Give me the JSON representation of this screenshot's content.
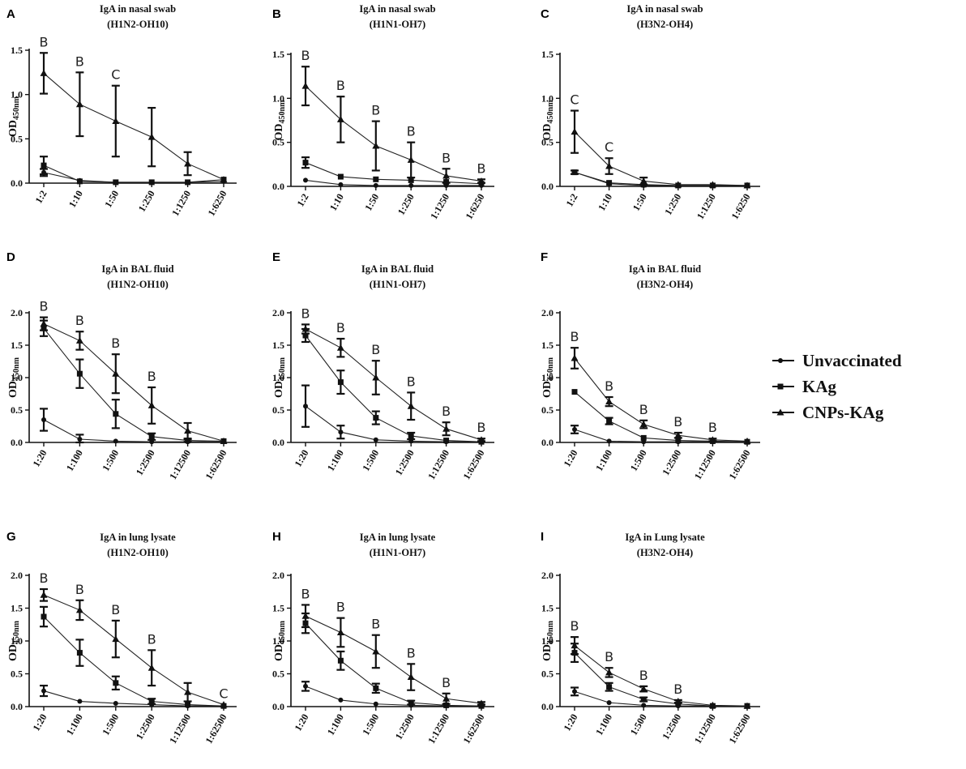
{
  "legend": {
    "entries": [
      {
        "name": "Unvaccinated",
        "marker": "circle"
      },
      {
        "name": "KAg",
        "marker": "square"
      },
      {
        "name": "CNPs-KAg",
        "marker": "triangle"
      }
    ],
    "placement": "right-middle"
  },
  "chart_data": [
    {
      "panel": "A",
      "type": "line",
      "title": "IgA in nasal swab",
      "subtitle": "(H1N2-OH10)",
      "ylabel": "OD450nm",
      "ylim": [
        0,
        1.5
      ],
      "yticks": [
        0,
        0.5,
        1.0,
        1.5
      ],
      "categories": [
        "1:2",
        "1:10",
        "1:50",
        "1:250",
        "1:1250",
        "1:6250"
      ],
      "series": [
        {
          "name": "Unvaccinated",
          "values": [
            0.12,
            0.03,
            0.01,
            0.01,
            0.01,
            0.02
          ],
          "errors": [
            0.04,
            0.0,
            0.0,
            0.0,
            0.0,
            0.0
          ]
        },
        {
          "name": "KAg",
          "values": [
            0.2,
            0.02,
            0.01,
            0.01,
            0.01,
            0.04
          ],
          "errors": [
            0.1,
            0.0,
            0.0,
            0.0,
            0.0,
            0.0
          ]
        },
        {
          "name": "CNPs-KAg",
          "values": [
            1.24,
            0.89,
            0.7,
            0.52,
            0.22,
            0.04
          ],
          "errors": [
            0.23,
            0.36,
            0.4,
            0.33,
            0.13,
            0.0
          ]
        }
      ],
      "annotations": [
        {
          "category": "1:2",
          "text": "B"
        },
        {
          "category": "1:10",
          "text": "B"
        },
        {
          "category": "1:50",
          "text": "C"
        }
      ]
    },
    {
      "panel": "B",
      "type": "line",
      "title": "IgA in nasal swab",
      "subtitle": "(H1N1-OH7)",
      "ylabel": "OD450nm",
      "ylim": [
        0,
        1.5
      ],
      "yticks": [
        0,
        0.5,
        1.0,
        1.5
      ],
      "categories": [
        "1:2",
        "1:10",
        "1:50",
        "1:250",
        "1:1250",
        "1:6250"
      ],
      "series": [
        {
          "name": "Unvaccinated",
          "values": [
            0.07,
            0.02,
            0.01,
            0.01,
            0.01,
            0.01
          ],
          "errors": [
            0,
            0,
            0,
            0,
            0,
            0
          ]
        },
        {
          "name": "KAg",
          "values": [
            0.27,
            0.11,
            0.08,
            0.07,
            0.05,
            0.03
          ],
          "errors": [
            0.06,
            0,
            0,
            0,
            0,
            0
          ]
        },
        {
          "name": "CNPs-KAg",
          "values": [
            1.14,
            0.76,
            0.46,
            0.3,
            0.12,
            0.06
          ],
          "errors": [
            0.22,
            0.26,
            0.28,
            0.2,
            0.08,
            0.02
          ]
        }
      ],
      "annotations": [
        {
          "category": "1:2",
          "text": "B"
        },
        {
          "category": "1:10",
          "text": "B"
        },
        {
          "category": "1:50",
          "text": "B"
        },
        {
          "category": "1:250",
          "text": "B"
        },
        {
          "category": "1:1250",
          "text": "B"
        },
        {
          "category": "1:6250",
          "text": "B"
        }
      ]
    },
    {
      "panel": "C",
      "type": "line",
      "title": "IgA in nasal swab",
      "subtitle": "(H3N2-OH4)",
      "ylabel": "OD450nm",
      "ylim": [
        0,
        1.5
      ],
      "yticks": [
        0,
        0.5,
        1.0,
        1.5
      ],
      "categories": [
        "1:2",
        "1:10",
        "1:50",
        "1:250",
        "1:1250",
        "1:6250"
      ],
      "series": [
        {
          "name": "Unvaccinated",
          "values": [
            0.16,
            0.03,
            0.01,
            0.01,
            0.01,
            0.01
          ],
          "errors": [
            0,
            0,
            0,
            0,
            0,
            0
          ]
        },
        {
          "name": "KAg",
          "values": [
            0.16,
            0.04,
            0.02,
            0.01,
            0.01,
            0.01
          ],
          "errors": [
            0.02,
            0,
            0,
            0,
            0,
            0
          ]
        },
        {
          "name": "CNPs-KAg",
          "values": [
            0.62,
            0.23,
            0.06,
            0.02,
            0.02,
            0.01
          ],
          "errors": [
            0.24,
            0.09,
            0.04,
            0,
            0,
            0
          ]
        }
      ],
      "annotations": [
        {
          "category": "1:2",
          "text": "C"
        },
        {
          "category": "1:10",
          "text": "C"
        }
      ]
    },
    {
      "panel": "D",
      "type": "line",
      "title": "IgA in BAL fluid",
      "subtitle": "(H1N2-OH10)",
      "ylabel": "OD450nm",
      "ylim": [
        0,
        2.0
      ],
      "yticks": [
        0,
        0.5,
        1.0,
        1.5,
        2.0
      ],
      "categories": [
        "1:20",
        "1:100",
        "1:500",
        "1:2500",
        "1:12500",
        "1:62500"
      ],
      "series": [
        {
          "name": "Unvaccinated",
          "values": [
            0.35,
            0.05,
            0.02,
            0.01,
            0.01,
            0.01
          ],
          "errors": [
            0.17,
            0.07,
            0,
            0,
            0,
            0
          ]
        },
        {
          "name": "KAg",
          "values": [
            1.76,
            1.06,
            0.44,
            0.09,
            0.03,
            0.02
          ],
          "errors": [
            0.12,
            0.22,
            0.22,
            0.05,
            0.02,
            0
          ]
        },
        {
          "name": "CNPs-KAg",
          "values": [
            1.83,
            1.57,
            1.06,
            0.57,
            0.18,
            0.02
          ],
          "errors": [
            0.1,
            0.14,
            0.3,
            0.28,
            0.12,
            0
          ]
        }
      ],
      "annotations": [
        {
          "category": "1:20",
          "text": "B"
        },
        {
          "category": "1:100",
          "text": "B"
        },
        {
          "category": "1:500",
          "text": "B"
        },
        {
          "category": "1:2500",
          "text": "B"
        }
      ]
    },
    {
      "panel": "E",
      "type": "line",
      "title": "IgA in BAL fluid",
      "subtitle": "(H1N1-OH7)",
      "ylabel": "OD450nm",
      "ylim": [
        0,
        2.0
      ],
      "yticks": [
        0,
        0.5,
        1.0,
        1.5,
        2.0
      ],
      "categories": [
        "1:20",
        "1:100",
        "1:500",
        "1:2500",
        "1:12500",
        "1:62500"
      ],
      "series": [
        {
          "name": "Unvaccinated",
          "values": [
            0.56,
            0.16,
            0.04,
            0.02,
            0.01,
            0.01
          ],
          "errors": [
            0.32,
            0.1,
            0,
            0,
            0,
            0
          ]
        },
        {
          "name": "KAg",
          "values": [
            1.65,
            0.93,
            0.38,
            0.1,
            0.03,
            0.01
          ],
          "errors": [
            0.1,
            0.18,
            0.1,
            0.05,
            0,
            0
          ]
        },
        {
          "name": "CNPs-KAg",
          "values": [
            1.75,
            1.46,
            1.0,
            0.56,
            0.21,
            0.04
          ],
          "errors": [
            0.07,
            0.14,
            0.26,
            0.21,
            0.1,
            0.02
          ]
        }
      ],
      "annotations": [
        {
          "category": "1:20",
          "text": "B"
        },
        {
          "category": "1:100",
          "text": "B"
        },
        {
          "category": "1:500",
          "text": "B"
        },
        {
          "category": "1:2500",
          "text": "B"
        },
        {
          "category": "1:12500",
          "text": "B"
        },
        {
          "category": "1:62500",
          "text": "B"
        }
      ]
    },
    {
      "panel": "F",
      "type": "line",
      "title": "IgA in BAL fluid",
      "subtitle": "(H3N2-OH4)",
      "ylabel": "OD450nm",
      "ylim": [
        0,
        2.0
      ],
      "yticks": [
        0,
        0.5,
        1.0,
        1.5,
        2.0
      ],
      "categories": [
        "1:20",
        "1:100",
        "1:500",
        "1:2500",
        "1:12500",
        "1:62500"
      ],
      "series": [
        {
          "name": "Unvaccinated",
          "values": [
            0.2,
            0.02,
            0.01,
            0.01,
            0.01,
            0.01
          ],
          "errors": [
            0.06,
            0,
            0,
            0,
            0,
            0
          ]
        },
        {
          "name": "KAg",
          "values": [
            0.78,
            0.33,
            0.07,
            0.03,
            0.02,
            0.01
          ],
          "errors": [
            0,
            0.05,
            0,
            0,
            0,
            0
          ]
        },
        {
          "name": "CNPs-KAg",
          "values": [
            1.3,
            0.63,
            0.28,
            0.11,
            0.04,
            0.02
          ],
          "errors": [
            0.16,
            0.07,
            0.06,
            0.04,
            0.02,
            0
          ]
        }
      ],
      "annotations": [
        {
          "category": "1:20",
          "text": "B"
        },
        {
          "category": "1:100",
          "text": "B"
        },
        {
          "category": "1:500",
          "text": "B"
        },
        {
          "category": "1:2500",
          "text": "B"
        },
        {
          "category": "1:12500",
          "text": "B"
        }
      ]
    },
    {
      "panel": "G",
      "type": "line",
      "title": "IgA in lung lysate",
      "subtitle": "(H1N2-OH10)",
      "ylabel": "OD450nm",
      "ylim": [
        0,
        2.0
      ],
      "yticks": [
        0,
        0.5,
        1.0,
        1.5,
        2.0
      ],
      "categories": [
        "1:20",
        "1:100",
        "1:500",
        "1:2500",
        "1:12500",
        "1:62500"
      ],
      "series": [
        {
          "name": "Unvaccinated",
          "values": [
            0.24,
            0.08,
            0.05,
            0.03,
            0.01,
            0.01
          ],
          "errors": [
            0.08,
            0,
            0,
            0,
            0,
            0
          ]
        },
        {
          "name": "KAg",
          "values": [
            1.37,
            0.82,
            0.36,
            0.08,
            0.03,
            0.01
          ],
          "errors": [
            0.15,
            0.2,
            0.1,
            0.04,
            0,
            0
          ]
        },
        {
          "name": "CNPs-KAg",
          "values": [
            1.7,
            1.47,
            1.03,
            0.59,
            0.22,
            0.03
          ],
          "errors": [
            0.09,
            0.15,
            0.28,
            0.27,
            0.14,
            0
          ]
        }
      ],
      "annotations": [
        {
          "category": "1:20",
          "text": "B"
        },
        {
          "category": "1:100",
          "text": "B"
        },
        {
          "category": "1:500",
          "text": "B"
        },
        {
          "category": "1:2500",
          "text": "B"
        },
        {
          "category": "1:62500",
          "text": "C"
        }
      ]
    },
    {
      "panel": "H",
      "type": "line",
      "title": "IgA in lung lysate",
      "subtitle": "(H1N1-OH7)",
      "ylabel": "OD450nm",
      "ylim": [
        0,
        2.0
      ],
      "yticks": [
        0,
        0.5,
        1.0,
        1.5,
        2.0
      ],
      "categories": [
        "1:20",
        "1:100",
        "1:500",
        "1:2500",
        "1:12500",
        "1:62500"
      ],
      "series": [
        {
          "name": "Unvaccinated",
          "values": [
            0.31,
            0.1,
            0.04,
            0.02,
            0.01,
            0.01
          ],
          "errors": [
            0.07,
            0,
            0,
            0,
            0,
            0
          ]
        },
        {
          "name": "KAg",
          "values": [
            1.27,
            0.7,
            0.28,
            0.06,
            0.02,
            0.01
          ],
          "errors": [
            0.15,
            0.14,
            0.07,
            0.03,
            0,
            0
          ]
        },
        {
          "name": "CNPs-KAg",
          "values": [
            1.38,
            1.13,
            0.84,
            0.45,
            0.12,
            0.05
          ],
          "errors": [
            0.17,
            0.22,
            0.25,
            0.2,
            0.08,
            0.02
          ]
        }
      ],
      "annotations": [
        {
          "category": "1:20",
          "text": "B"
        },
        {
          "category": "1:100",
          "text": "B"
        },
        {
          "category": "1:500",
          "text": "B"
        },
        {
          "category": "1:2500",
          "text": "B"
        },
        {
          "category": "1:12500",
          "text": "B"
        }
      ]
    },
    {
      "panel": "I",
      "type": "line",
      "title": "IgA in Lung lysate",
      "subtitle": "(H3N2-OH4)",
      "ylabel": "OD450nm",
      "ylim": [
        0,
        2.0
      ],
      "yticks": [
        0,
        0.5,
        1.0,
        1.5,
        2.0
      ],
      "categories": [
        "1:20",
        "1:100",
        "1:500",
        "1:2500",
        "1:12500",
        "1:62500"
      ],
      "series": [
        {
          "name": "Unvaccinated",
          "values": [
            0.23,
            0.06,
            0.02,
            0.01,
            0.01,
            0.01
          ],
          "errors": [
            0.06,
            0,
            0,
            0,
            0,
            0
          ]
        },
        {
          "name": "KAg",
          "values": [
            0.82,
            0.3,
            0.11,
            0.04,
            0.01,
            0.01
          ],
          "errors": [
            0.14,
            0.06,
            0.03,
            0,
            0,
            0
          ]
        },
        {
          "name": "CNPs-KAg",
          "values": [
            0.93,
            0.52,
            0.27,
            0.08,
            0.02,
            0.01
          ],
          "errors": [
            0.13,
            0.07,
            0.04,
            0.02,
            0,
            0
          ]
        }
      ],
      "annotations": [
        {
          "category": "1:20",
          "text": "B"
        },
        {
          "category": "1:100",
          "text": "B"
        },
        {
          "category": "1:500",
          "text": "B"
        },
        {
          "category": "1:2500",
          "text": "B"
        }
      ]
    }
  ]
}
